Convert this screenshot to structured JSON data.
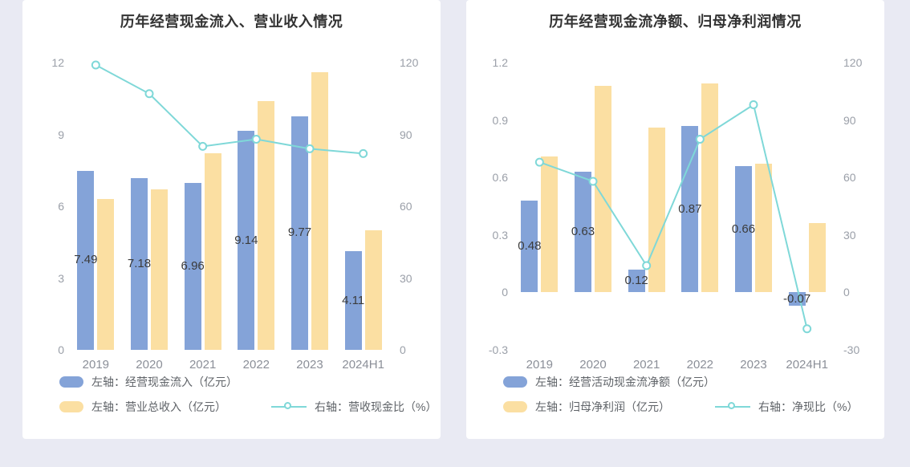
{
  "colors": {
    "blue": "#84A3D8",
    "yellow": "#FBDFA2",
    "teal": "#7FD8D8",
    "title_text": "#333333",
    "axis_text": "#9A9FA8",
    "bar_label_text": "#3B3B3B",
    "legend_text": "#5F6368",
    "panel_bg": "#FFFFFF",
    "page_bg": "#E9EAF3"
  },
  "chart_data": [
    {
      "type": "bar",
      "title": "历年经营现金流入、营业收入情况",
      "categories": [
        "2019",
        "2020",
        "2021",
        "2022",
        "2023",
        "2024H1"
      ],
      "left_axis": {
        "min": 0,
        "max": 12,
        "ticks": [
          12,
          9,
          6,
          3,
          0
        ]
      },
      "right_axis": {
        "min": 0,
        "max": 120,
        "ticks": [
          120,
          90,
          60,
          30,
          0
        ]
      },
      "grid": false,
      "legend_position": "bottom-left",
      "series": [
        {
          "name": "左轴：经营现金流入（亿元）",
          "type": "bar",
          "axis": "left",
          "color_key": "blue",
          "values": [
            7.49,
            7.18,
            6.96,
            9.14,
            9.77,
            4.11
          ],
          "labels": [
            "7.49",
            "7.18",
            "6.96",
            "9.14",
            "9.77",
            "4.11"
          ]
        },
        {
          "name": "左轴：营业总收入（亿元）",
          "type": "bar",
          "axis": "left",
          "color_key": "yellow",
          "values": [
            6.3,
            6.7,
            8.2,
            10.4,
            11.6,
            5.0
          ]
        },
        {
          "name": "右轴：营收现金比（%）",
          "type": "line",
          "axis": "right",
          "color_key": "teal",
          "values": [
            119,
            107,
            85,
            88,
            84,
            82
          ]
        }
      ]
    },
    {
      "type": "bar",
      "title": "历年经营现金流净额、归母净利润情况",
      "categories": [
        "2019",
        "2020",
        "2021",
        "2022",
        "2023",
        "2024H1"
      ],
      "left_axis": {
        "min": -0.3,
        "max": 1.2,
        "ticks": [
          1.2,
          0.9,
          0.6,
          0.3,
          0,
          -0.3
        ]
      },
      "right_axis": {
        "min": -30,
        "max": 120,
        "ticks": [
          120,
          90,
          60,
          30,
          0,
          -30
        ]
      },
      "grid": false,
      "legend_position": "bottom-left",
      "series": [
        {
          "name": "左轴：经营活动现金流净额（亿元）",
          "type": "bar",
          "axis": "left",
          "color_key": "blue",
          "values": [
            0.48,
            0.63,
            0.12,
            0.87,
            0.66,
            -0.07
          ],
          "labels": [
            "0.48",
            "0.63",
            "0.12",
            "0.87",
            "0.66",
            "-0.07"
          ]
        },
        {
          "name": "左轴：归母净利润（亿元）",
          "type": "bar",
          "axis": "left",
          "color_key": "yellow",
          "values": [
            0.71,
            1.08,
            0.86,
            1.09,
            0.67,
            0.36
          ]
        },
        {
          "name": "右轴：净现比（%）",
          "type": "line",
          "axis": "right",
          "color_key": "teal",
          "values": [
            68,
            58,
            14,
            80,
            98,
            -19
          ]
        }
      ]
    }
  ]
}
